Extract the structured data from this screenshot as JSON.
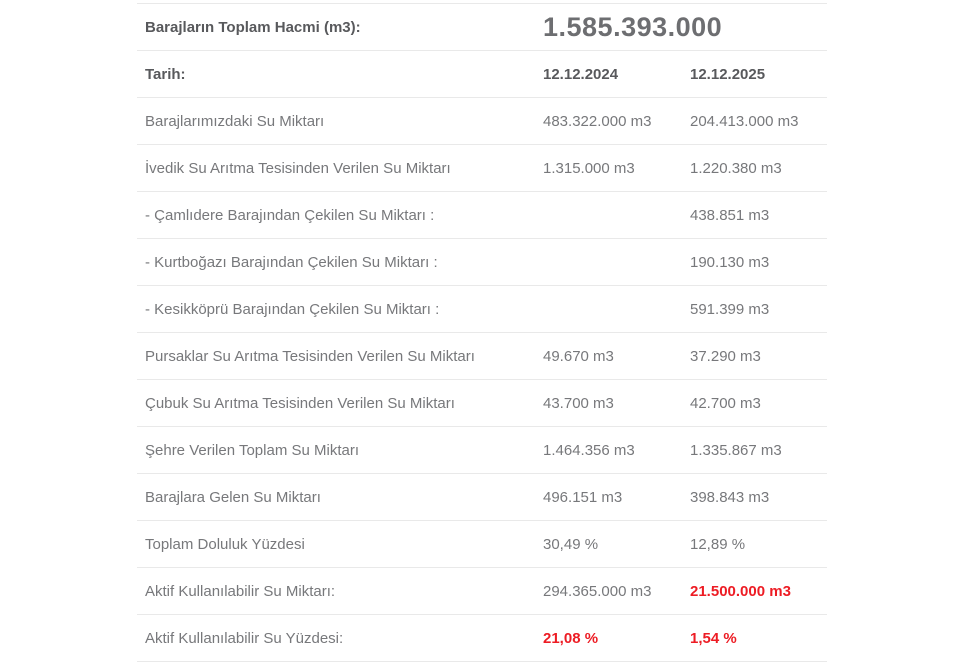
{
  "colors": {
    "highlight_red": "#ed1c24",
    "text_regular": "#77787b",
    "text_bold": "#58595c",
    "border": "#e9e9e9"
  },
  "table": {
    "total_volume_label": "Barajların Toplam Hacmi (m3):",
    "total_volume_value": "1.585.393.000",
    "date_label": "Tarih:",
    "date_2024": "12.12.2024",
    "date_2025": "12.12.2025",
    "rows": [
      {
        "label": "Barajlarımızdaki Su Miktarı",
        "v2024": "483.322.000 m3",
        "v2025": "204.413.000 m3",
        "red2024": false,
        "red2025": false
      },
      {
        "label": "İvedik Su Arıtma Tesisinden Verilen Su Miktarı",
        "v2024": "1.315.000 m3",
        "v2025": "1.220.380 m3",
        "red2024": false,
        "red2025": false
      },
      {
        "label": "- Çamlıdere Barajından Çekilen Su Miktarı :",
        "v2024": "",
        "v2025": "438.851 m3",
        "red2024": false,
        "red2025": false
      },
      {
        "label": "- Kurtboğazı Barajından Çekilen Su Miktarı :",
        "v2024": "",
        "v2025": "190.130 m3",
        "red2024": false,
        "red2025": false
      },
      {
        "label": "- Kesikköprü Barajından Çekilen Su Miktarı :",
        "v2024": "",
        "v2025": "591.399 m3",
        "red2024": false,
        "red2025": false
      },
      {
        "label": "Pursaklar Su Arıtma Tesisinden Verilen Su Miktarı",
        "v2024": "49.670 m3",
        "v2025": "37.290 m3",
        "red2024": false,
        "red2025": false
      },
      {
        "label": "Çubuk Su Arıtma Tesisinden Verilen Su Miktarı",
        "v2024": "43.700 m3",
        "v2025": "42.700 m3",
        "red2024": false,
        "red2025": false
      },
      {
        "label": "Şehre Verilen Toplam Su Miktarı",
        "v2024": "1.464.356 m3",
        "v2025": "1.335.867 m3",
        "red2024": false,
        "red2025": false
      },
      {
        "label": "Barajlara Gelen Su Miktarı",
        "v2024": "496.151 m3",
        "v2025": "398.843 m3",
        "red2024": false,
        "red2025": false
      },
      {
        "label": "Toplam Doluluk Yüzdesi",
        "v2024": "30,49 %",
        "v2025": "12,89 %",
        "red2024": false,
        "red2025": false
      },
      {
        "label": "Aktif Kullanılabilir Su Miktarı:",
        "v2024": "294.365.000 m3",
        "v2025": "21.500.000 m3",
        "red2024": false,
        "red2025": true
      },
      {
        "label": "Aktif Kullanılabilir Su Yüzdesi:",
        "v2024": "21,08 %",
        "v2025": "1,54 %",
        "red2024": true,
        "red2025": true
      }
    ]
  }
}
